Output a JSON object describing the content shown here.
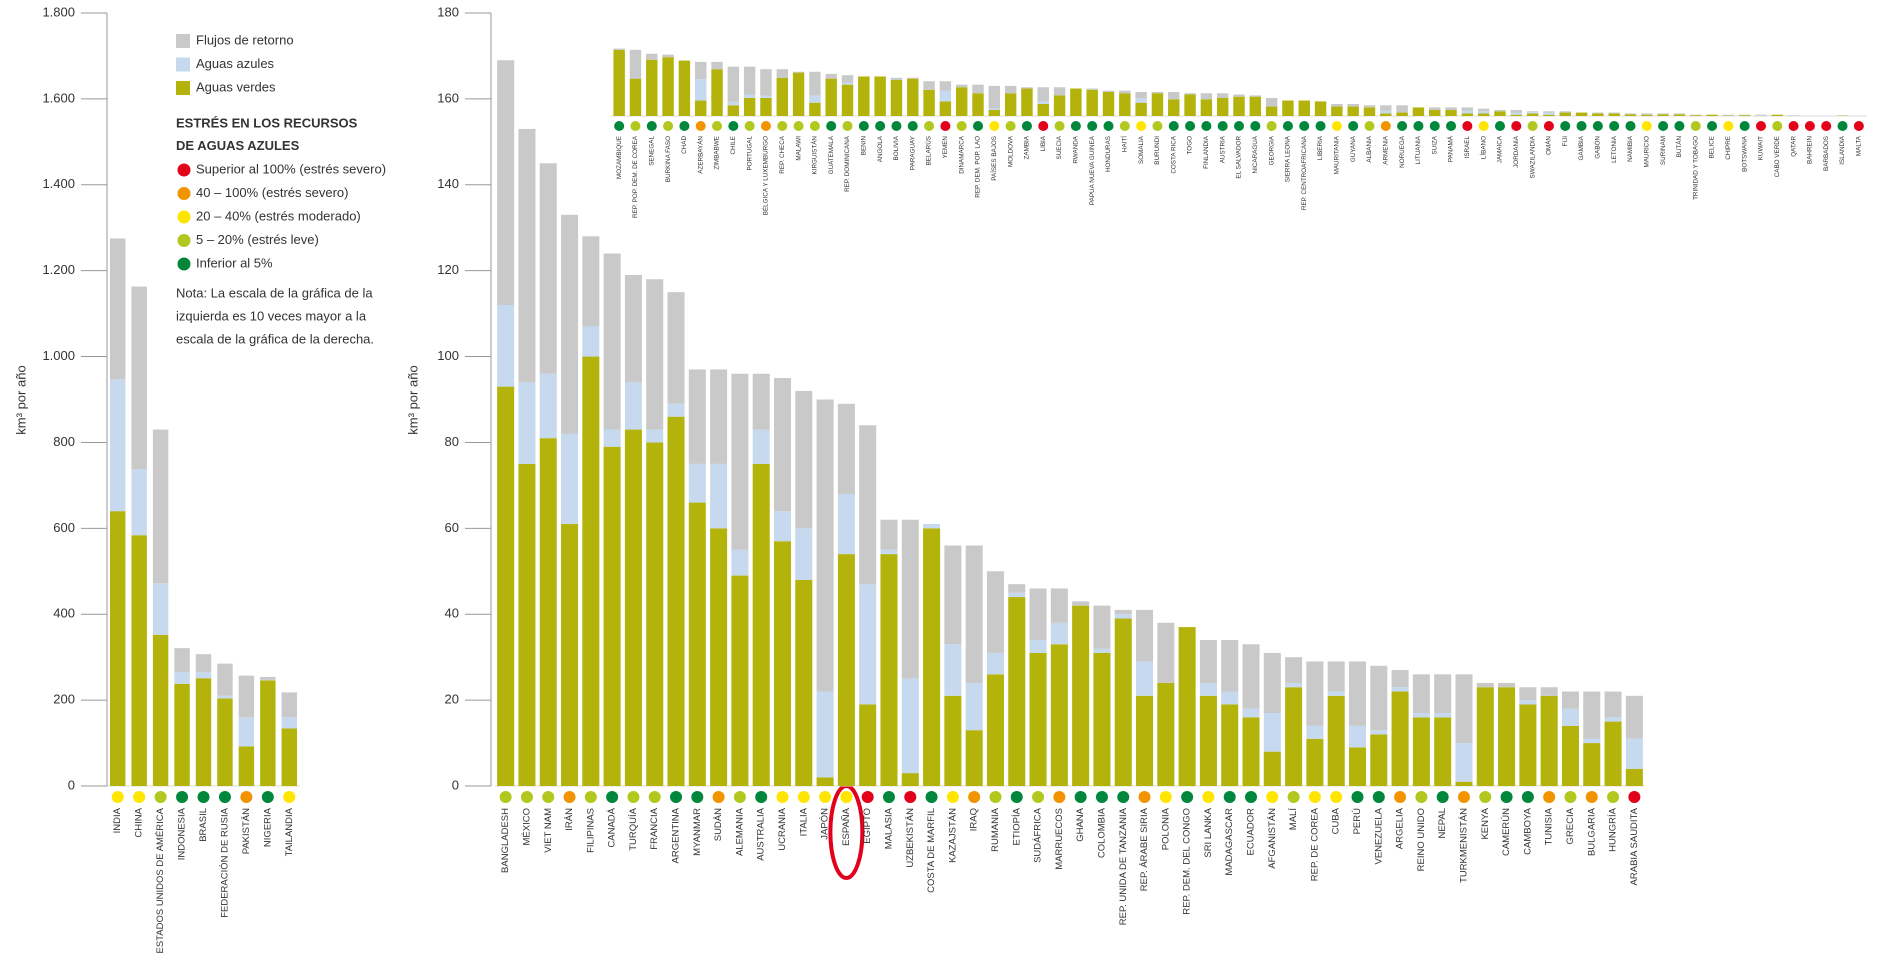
{
  "chart_data": [
    {
      "type": "bar",
      "stacked": true,
      "ylabel": "km³ por año",
      "categories": [
        "INDIA",
        "CHINA",
        "ESTADOS UNIDOS DE AMÉRICA",
        "INDONESIA",
        "BRASIL",
        "FEDERACIÓN DE RUSIA",
        "PAKISTÁN",
        "NIGERIA",
        "TAILANDIA"
      ],
      "series": [
        {
          "name": "Aguas verdes",
          "color": "#b3b30c",
          "values": [
            640,
            584,
            352,
            238,
            251,
            204,
            92,
            246,
            134
          ]
        },
        {
          "name": "Aguas azules",
          "color": "#c6d9ee",
          "values": [
            307,
            154,
            120,
            27,
            14,
            6,
            68,
            2,
            26
          ]
        },
        {
          "name": "Flujos de retorno",
          "color": "#c9c9c9",
          "values": [
            328,
            425,
            358,
            56,
            42,
            75,
            97,
            6,
            58
          ]
        }
      ],
      "marker_colors": [
        "#ffe500",
        "#ffe500",
        "#b2c81e",
        "#00873c",
        "#00873c",
        "#00873c",
        "#f29400",
        "#00873c",
        "#ffe500"
      ],
      "ylim": [
        0,
        1800
      ],
      "yticks": [
        0,
        200,
        400,
        600,
        800,
        {
          "value": 1000,
          "label": "1.000"
        },
        {
          "value": 1200,
          "label": "1.200"
        },
        {
          "value": 1400,
          "label": "1.400"
        },
        {
          "value": 1600,
          "label": "1.600"
        },
        {
          "value": 1800,
          "label": "1.800"
        }
      ]
    },
    {
      "type": "bar",
      "stacked": true,
      "ylabel": "km³ por año",
      "categories": [
        "BANGLADESH",
        "MÉXICO",
        "VIET NAM",
        "IRÁN",
        "FILIPINAS",
        "CANADÁ",
        "TURQUÍA",
        "FRANCIA",
        "ARGENTINA",
        "MYANMAR",
        "SUDÁN",
        "ALEMANIA",
        "AUSTRALIA",
        "UCRANIA",
        "ITALIA",
        "JAPÓN",
        "ESPAÑA",
        "EGIPTO",
        "MALASIA",
        "UZBEKISTÁN",
        "COSTA DE MARFIL",
        "KAZAJSTÁN",
        "IRAQ",
        "RUMANIA",
        "ETIOPÍA",
        "SUDÁFRICA",
        "MARRUECOS",
        "GHANA",
        "COLOMBIA",
        "REP. UNIDA DE TANZANIA",
        "REP. ÁRABE SIRIA",
        "POLONIA",
        "REP. DEM. DEL CONGO",
        "SRI LANKA",
        "MADAGASCAR",
        "ECUADOR",
        "AFGANISTÁN",
        "MALÍ",
        "REP. DE COREA",
        "CUBA",
        "PERÚ",
        "VENEZUELA",
        "ARGELIA",
        "REINO UNIDO",
        "NEPAL",
        "TURKMENISTÁN",
        "KENYA",
        "CAMERÚN",
        "CAMBOYA",
        "TUNISIA",
        "GRECIA",
        "BULGARIA",
        "HUNGRÍA",
        "ARABIA SAUDITA"
      ],
      "series": [
        {
          "name": "Aguas verdes",
          "color": "#b3b30c",
          "values": [
            93,
            75,
            81,
            61,
            100,
            79,
            83,
            80,
            86,
            66,
            60,
            49,
            75,
            57,
            48,
            2,
            54,
            19,
            54,
            3,
            60,
            21,
            13,
            26,
            44,
            31,
            33,
            42,
            31,
            39,
            21,
            24,
            37,
            21,
            19,
            16,
            8,
            23,
            11,
            21,
            9,
            12,
            22,
            16,
            16,
            1,
            23,
            23,
            19,
            21,
            14,
            10,
            15,
            4
          ]
        },
        {
          "name": "Aguas azules",
          "color": "#c6d9ee",
          "values": [
            19,
            19,
            15,
            21,
            7,
            4,
            11,
            3,
            3,
            9,
            15,
            6,
            8,
            7,
            12,
            20,
            14,
            28,
            1,
            22,
            1,
            12,
            11,
            5,
            1,
            3,
            5,
            0,
            1,
            1,
            8,
            0,
            0,
            3,
            3,
            2,
            9,
            1,
            3,
            1,
            5,
            1,
            1,
            1,
            1,
            9,
            0,
            0,
            1,
            0,
            4,
            1,
            1,
            7
          ]
        },
        {
          "name": "Flujos de retorno",
          "color": "#c9c9c9",
          "values": [
            57,
            59,
            49,
            51,
            21,
            41,
            25,
            35,
            26,
            22,
            22,
            41,
            13,
            31,
            32,
            68,
            21,
            37,
            7,
            37,
            0,
            23,
            32,
            19,
            2,
            12,
            8,
            1,
            10,
            1,
            12,
            14,
            0,
            10,
            12,
            15,
            14,
            6,
            15,
            7,
            15,
            15,
            4,
            9,
            9,
            16,
            1,
            1,
            3,
            2,
            4,
            11,
            6,
            10
          ]
        }
      ],
      "marker_colors": [
        "#b2c81e",
        "#b2c81e",
        "#b2c81e",
        "#f29400",
        "#b2c81e",
        "#00873c",
        "#b2c81e",
        "#b2c81e",
        "#00873c",
        "#00873c",
        "#f29400",
        "#b2c81e",
        "#00873c",
        "#ffe500",
        "#ffe500",
        "#ffe500",
        "#ffe500",
        "#e2001a",
        "#00873c",
        "#e2001a",
        "#00873c",
        "#ffe500",
        "#f29400",
        "#b2c81e",
        "#00873c",
        "#b2c81e",
        "#f29400",
        "#00873c",
        "#00873c",
        "#00873c",
        "#f29400",
        "#ffe500",
        "#00873c",
        "#ffe500",
        "#00873c",
        "#00873c",
        "#ffe500",
        "#b2c81e",
        "#ffe500",
        "#ffe500",
        "#00873c",
        "#00873c",
        "#f29400",
        "#b2c81e",
        "#00873c",
        "#f29400",
        "#b2c81e",
        "#00873c",
        "#00873c",
        "#f29400",
        "#b2c81e",
        "#f29400",
        "#b2c81e",
        "#e2001a"
      ],
      "ylim": [
        0,
        180
      ],
      "yticks": [
        0,
        20,
        40,
        60,
        80,
        100,
        120,
        140,
        160,
        180
      ]
    },
    {
      "type": "bar",
      "stacked": true,
      "categories": [
        "MOZAMBIQUE",
        "REP. POP. DEM. DE COREA",
        "SENEGAL",
        "BURKINA FASO",
        "CHAD",
        "AZERBAYÁN",
        "ZIMBABWE",
        "CHILE",
        "PORTUGAL",
        "BÉLGICA Y LUXEMBURGO",
        "REP. CHECA",
        "MALAWI",
        "KIRGUISTÁN",
        "GUATEMALA",
        "REP. DOMINICANA",
        "BENIN",
        "ANGOLA",
        "BOLIVIA",
        "PARAGUAY",
        "BELARÚS",
        "YEMEN",
        "DINAMARCA",
        "REP. DEM. POP. LAO",
        "PAÍSES BAJOS",
        "MOLDOVA",
        "ZAMBIA",
        "LIBIA",
        "SUECIA",
        "RWANDA",
        "PAPUA NUEVA GUINEA",
        "HONDURAS",
        "HAITÍ",
        "SOMALIA",
        "BURUNDI",
        "COSTA RICA",
        "TOGO",
        "FINLANDIA",
        "AUSTRIA",
        "EL SALVADOR",
        "NICARAGUA",
        "GEORGIA",
        "SIERRA LEONA",
        "REP. CENTROAFRICANA",
        "LIBERIA",
        "MAURITANIA",
        "GUYANA",
        "ALBANIA",
        "ARMENIA",
        "NORUEGA",
        "LITUANIA",
        "SUIZA",
        "PANAMÁ",
        "ISRAEL",
        "LÍBANO",
        "JAMAICA",
        "JORDANIA",
        "SWAZILANDIA",
        "OMÁN",
        "FIJI",
        "GAMBIA",
        "GABÓN",
        "LETONIA",
        "NAMIBIA",
        "MAURICIO",
        "SURINAM",
        "BUTÁN",
        "TRINIDAD Y TOBAGO",
        "BELICE",
        "CHIPRE",
        "BOTSWANA",
        "KUWAIT",
        "CABO VERDE",
        "QATAR",
        "BAHREIN",
        "BARBADOS",
        "ISLANDIA",
        "MALTA"
      ],
      "series": [
        {
          "name": "Aguas verdes",
          "color": "#b3b30c",
          "values": [
            15.4,
            8.7,
            13.1,
            13.7,
            12.9,
            3.6,
            10.9,
            2.5,
            4.2,
            4.2,
            8.9,
            10.1,
            3.1,
            8.7,
            7.3,
            9.2,
            9.2,
            8.4,
            8.7,
            6.1,
            3.4,
            6.7,
            5.3,
            1.4,
            5.3,
            6.4,
            2.8,
            4.8,
            6.4,
            6.1,
            5.6,
            5.3,
            3.1,
            5.3,
            3.9,
            5.0,
            3.9,
            4.2,
            4.5,
            4.5,
            2.2,
            3.6,
            3.6,
            3.4,
            2.2,
            2.2,
            2.0,
            0.6,
            0.8,
            2.0,
            1.4,
            1.4,
            0.6,
            0.6,
            1.1,
            0.3,
            0.6,
            0.3,
            0.8,
            0.8,
            0.6,
            0.6,
            0.4,
            0.3,
            0.4,
            0.4,
            0.2,
            0.3,
            0.1,
            0.2,
            0,
            0.3,
            0,
            0,
            0,
            0.1,
            0
          ]
        },
        {
          "name": "Aguas azules",
          "color": "#c6d9ee",
          "values": [
            0,
            0,
            0,
            0,
            0,
            5.0,
            0,
            0.8,
            0.8,
            0.5,
            0,
            0,
            1.7,
            0,
            0.5,
            0,
            0,
            0,
            0,
            0,
            2.5,
            0,
            0,
            0.3,
            0,
            0,
            0.6,
            0,
            0,
            0,
            0,
            0,
            1.0,
            0,
            0,
            0,
            0,
            0,
            0,
            0,
            0,
            0,
            0,
            0,
            0,
            0,
            0,
            0.6,
            0,
            0,
            0,
            0,
            0.6,
            0.5,
            0,
            0.5,
            0.3,
            0.5,
            0,
            0,
            0,
            0,
            0,
            0,
            0,
            0,
            0,
            0,
            0.1,
            0,
            0.1,
            0,
            0.1,
            0.1,
            0.1,
            0,
            0.1
          ]
        },
        {
          "name": "Flujos de retorno",
          "color": "#c9c9c9",
          "values": [
            0.3,
            6.7,
            1.4,
            0.6,
            0,
            4.0,
            1.7,
            8.2,
            6.5,
            6.2,
            2.0,
            0.2,
            5.5,
            1.1,
            1.7,
            0,
            0,
            0.5,
            0.2,
            2.0,
            2.2,
            0.6,
            2.0,
            5.3,
            1.7,
            0.3,
            3.3,
            1.9,
            0,
            0.3,
            0.3,
            0.6,
            1.5,
            0.3,
            1.7,
            0.3,
            1.4,
            1.1,
            0.5,
            0.3,
            2.0,
            0,
            0,
            0,
            0.6,
            0.6,
            0.5,
            1.3,
            1.7,
            0,
            0.6,
            0.6,
            0.8,
            0.6,
            0.3,
            0.6,
            0.2,
            0.3,
            0.3,
            0,
            0.2,
            0.2,
            0.2,
            0.3,
            0.2,
            0.2,
            0.1,
            0,
            0.1,
            0.1,
            0.2,
            0,
            0.1,
            0,
            0,
            0,
            0
          ]
        }
      ],
      "marker_colors": [
        "#00873c",
        "#b2c81e",
        "#00873c",
        "#b2c81e",
        "#00873c",
        "#f29400",
        "#b2c81e",
        "#00873c",
        "#b2c81e",
        "#f29400",
        "#b2c81e",
        "#b2c81e",
        "#b2c81e",
        "#00873c",
        "#b2c81e",
        "#00873c",
        "#00873c",
        "#00873c",
        "#00873c",
        "#b2c81e",
        "#e2001a",
        "#b2c81e",
        "#00873c",
        "#ffe500",
        "#b2c81e",
        "#00873c",
        "#e2001a",
        "#b2c81e",
        "#00873c",
        "#00873c",
        "#00873c",
        "#b2c81e",
        "#ffe500",
        "#b2c81e",
        "#00873c",
        "#00873c",
        "#00873c",
        "#00873c",
        "#00873c",
        "#00873c",
        "#b2c81e",
        "#00873c",
        "#00873c",
        "#00873c",
        "#ffe500",
        "#00873c",
        "#b2c81e",
        "#f29400",
        "#00873c",
        "#00873c",
        "#00873c",
        "#00873c",
        "#e2001a",
        "#ffe500",
        "#00873c",
        "#e2001a",
        "#b2c81e",
        "#e2001a",
        "#00873c",
        "#00873c",
        "#00873c",
        "#00873c",
        "#00873c",
        "#ffe500",
        "#00873c",
        "#00873c",
        "#b2c81e",
        "#00873c",
        "#ffe500",
        "#00873c",
        "#e2001a",
        "#b2c81e",
        "#e2001a",
        "#e2001a",
        "#e2001a",
        "#00873c",
        "#e2001a"
      ]
    }
  ],
  "stress_legend": {
    "title_lines": [
      "ESTRÉS EN LOS RECURSOS",
      "DE AGUAS AZULES"
    ],
    "items": [
      {
        "label": "Superior al 100% (estrés severo)",
        "color": "#e2001a"
      },
      {
        "label": "40 – 100% (estrés severo)",
        "color": "#f29400"
      },
      {
        "label": "20 – 40% (estrés moderado)",
        "color": "#ffe500"
      },
      {
        "label": "5 – 20% (estrés leve)",
        "color": "#b2c81e"
      },
      {
        "label": "Inferior al 5%",
        "color": "#00873c"
      }
    ]
  },
  "note_lines": [
    "Nota: La escala de la gráfica de la",
    "izquierda es 10 veces mayor a la",
    "escala de la gráfica de la derecha."
  ]
}
